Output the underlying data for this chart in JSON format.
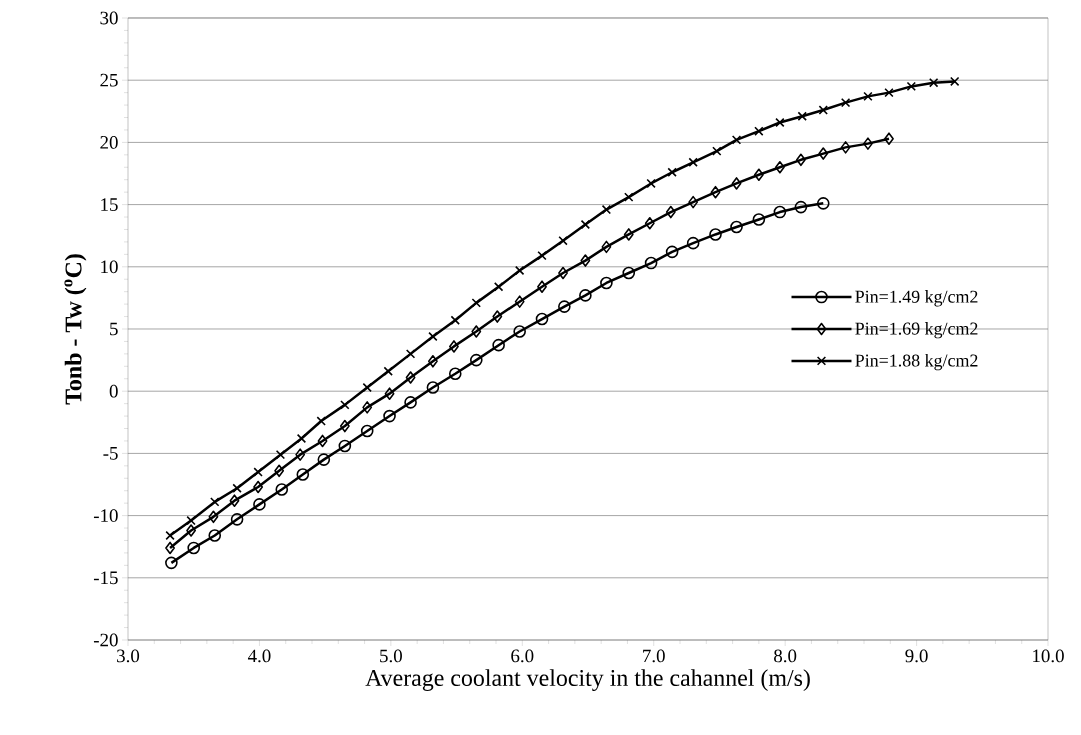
{
  "chart_data": {
    "type": "line",
    "xlabel": "Average coolant velocity in the cahannel (m/s)",
    "ylabel": "Tonb - Tw ($^{o}$C)",
    "xlim": [
      3,
      10
    ],
    "ylim": [
      -20,
      30
    ],
    "xticks": [
      {
        "value": 3,
        "label": "3.0"
      },
      {
        "value": 4,
        "label": "4.0"
      },
      {
        "value": 5,
        "label": "5.0"
      },
      {
        "value": 6,
        "label": "6.0"
      },
      {
        "value": 7,
        "label": "7.0"
      },
      {
        "value": 8,
        "label": "8.0"
      },
      {
        "value": 9,
        "label": "9.0"
      },
      {
        "value": 10,
        "label": "10.0"
      }
    ],
    "yticks": [
      -20,
      -15,
      -10,
      -5,
      0,
      5,
      10,
      15,
      20,
      25,
      30
    ],
    "grid": "y",
    "legend": "right",
    "line_style": "solid",
    "series": [
      {
        "name": "Pin=1.49 kg/cm2",
        "color": "#000000",
        "marker": "circle",
        "x": [
          3.33,
          3.5,
          3.66,
          3.83,
          4.0,
          4.17,
          4.33,
          4.49,
          4.65,
          4.82,
          4.99,
          5.15,
          5.32,
          5.49,
          5.65,
          5.82,
          5.98,
          6.15,
          6.32,
          6.48,
          6.64,
          6.81,
          6.98,
          7.14,
          7.3,
          7.47,
          7.63,
          7.8,
          7.96,
          8.12,
          8.29
        ],
        "values": [
          -13.8,
          -12.6,
          -11.6,
          -10.3,
          -9.1,
          -7.9,
          -6.7,
          -5.5,
          -4.4,
          -3.2,
          -2.0,
          -0.9,
          0.3,
          1.4,
          2.5,
          3.7,
          4.8,
          5.8,
          6.8,
          7.7,
          8.7,
          9.5,
          10.3,
          11.2,
          11.9,
          12.6,
          13.2,
          13.8,
          14.4,
          14.8,
          15.1
        ]
      },
      {
        "name": "Pin=1.69 kg/cm2",
        "color": "#000000",
        "marker": "diamond",
        "x": [
          3.32,
          3.48,
          3.65,
          3.81,
          3.99,
          4.15,
          4.31,
          4.48,
          4.65,
          4.82,
          4.99,
          5.15,
          5.32,
          5.48,
          5.65,
          5.81,
          5.98,
          6.15,
          6.31,
          6.48,
          6.64,
          6.81,
          6.97,
          7.13,
          7.3,
          7.47,
          7.63,
          7.8,
          7.96,
          8.12,
          8.29,
          8.46,
          8.63,
          8.79
        ],
        "values": [
          -12.6,
          -11.2,
          -10.1,
          -8.8,
          -7.7,
          -6.4,
          -5.1,
          -4.0,
          -2.8,
          -1.3,
          -0.2,
          1.1,
          2.4,
          3.6,
          4.8,
          6.0,
          7.2,
          8.4,
          9.5,
          10.5,
          11.6,
          12.6,
          13.5,
          14.4,
          15.2,
          16.0,
          16.7,
          17.4,
          18.0,
          18.6,
          19.1,
          19.6,
          19.9,
          20.3
        ]
      },
      {
        "name": "Pin=1.88 kg/cm2",
        "color": "#000000",
        "marker": "cross",
        "x": [
          3.32,
          3.48,
          3.66,
          3.83,
          3.99,
          4.16,
          4.32,
          4.47,
          4.65,
          4.82,
          4.98,
          5.15,
          5.32,
          5.49,
          5.65,
          5.82,
          5.98,
          6.15,
          6.31,
          6.48,
          6.64,
          6.81,
          6.98,
          7.14,
          7.3,
          7.48,
          7.63,
          7.8,
          7.96,
          8.13,
          8.29,
          8.46,
          8.63,
          8.79,
          8.96,
          9.13,
          9.29
        ],
        "values": [
          -11.6,
          -10.4,
          -8.9,
          -7.8,
          -6.5,
          -5.1,
          -3.8,
          -2.4,
          -1.1,
          0.3,
          1.6,
          3.0,
          4.4,
          5.7,
          7.1,
          8.4,
          9.7,
          10.9,
          12.1,
          13.4,
          14.6,
          15.6,
          16.7,
          17.6,
          18.4,
          19.3,
          20.2,
          20.9,
          21.6,
          22.1,
          22.6,
          23.2,
          23.7,
          24.0,
          24.5,
          24.8,
          24.9
        ]
      }
    ]
  }
}
